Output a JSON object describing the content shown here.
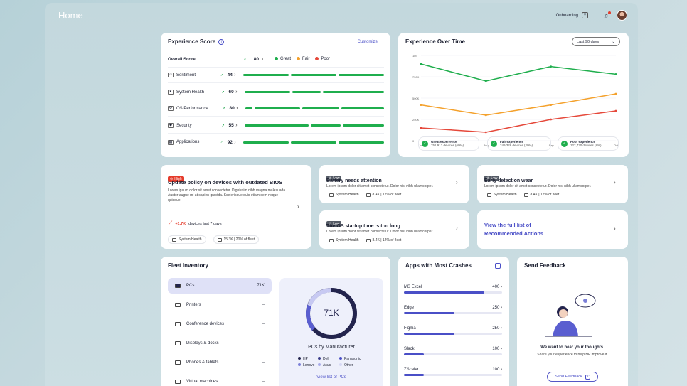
{
  "page": {
    "title": "Home"
  },
  "topbar": {
    "onboarding_label": "Onboarding"
  },
  "colors": {
    "accent": "#4a4fc7",
    "great": "#1fae4d",
    "fair": "#f4a12c",
    "poor": "#e5483a",
    "high": "#e53b2b",
    "low": "#555b66"
  },
  "experience_score": {
    "title": "Experience Score",
    "customize_label": "Customize",
    "overall": {
      "label": "Overall Score",
      "value": "80"
    },
    "legend": [
      "Great",
      "Fair",
      "Poor"
    ],
    "rows": [
      {
        "label": "Sentiment",
        "value": "44"
      },
      {
        "label": "System Health",
        "value": "60"
      },
      {
        "label": "OS Performance",
        "value": "80"
      },
      {
        "label": "Security",
        "value": "55"
      },
      {
        "label": "Applications",
        "value": "92"
      }
    ]
  },
  "experience_over_time": {
    "title": "Experience Over Time",
    "range_select": "Last 90 days",
    "summary": [
      {
        "label": "Great experience",
        "detail": "751,913 devices (60%)"
      },
      {
        "label": "Fair experience",
        "detail": "249,326 devices (20%)"
      },
      {
        "label": "Poor experience",
        "detail": "122,730 devices (8%)"
      }
    ]
  },
  "chart_data": {
    "type": "line",
    "x": [
      "Jul",
      "Aug",
      "Sep",
      "Oct"
    ],
    "yticks": [
      "1M",
      "750K",
      "500K",
      "250K",
      "0"
    ],
    "ylim": [
      0,
      1000000
    ],
    "series": [
      {
        "name": "Great experience",
        "values": [
          900000,
          700000,
          870000,
          780000
        ],
        "color": "#1fae4d"
      },
      {
        "name": "Fair experience",
        "values": [
          420000,
          300000,
          420000,
          550000
        ],
        "color": "#f4a12c"
      },
      {
        "name": "Poor experience",
        "values": [
          150000,
          100000,
          250000,
          350000
        ],
        "color": "#e5483a"
      }
    ],
    "grid": true
  },
  "recommendations": {
    "high": {
      "badge": "High",
      "title": "Update policy on devices with outdated BIOS",
      "desc": "Lorem ipsum dolor sit amet consectetur. Dignissim nibh magna malesuada. Auctor augue mi at sapien gravida. Scelerisque quis etiam sem neque quisque.",
      "stat_value": "+1.7K",
      "stat_label": "devices last 7 days",
      "category": "System Health",
      "fleet": "15.3K | 20% of fleet"
    },
    "items": [
      {
        "badge": "Low",
        "title": "Battery needs attention",
        "desc": "Lorem ipsum dolor sit amet consectetur. Dolor nisl nibh ullamcorper.",
        "category": "System Health",
        "fleet": "8.4K | 12% of fleet"
      },
      {
        "badge": "Low",
        "title": "Early detection wear",
        "desc": "Lorem ipsum dolor sit amet consectetur. Dolor nisl nibh ullamcorper.",
        "category": "System Health",
        "fleet": "8.4K | 12% of fleet"
      },
      {
        "badge": "Low",
        "title": "The OS startup time is too long",
        "desc": "Lorem ipsum dolor sit amet consectetur. Dolor nisl nibh ullamcorper.",
        "category": "System Health",
        "fleet": "8.4K | 12% of fleet"
      }
    ],
    "view_all_line1": "View the full list of",
    "view_all_line2": "Recommended Actions"
  },
  "fleet": {
    "title": "Fleet Inventory",
    "items": [
      {
        "label": "PCs",
        "count": "71K"
      },
      {
        "label": "Printers",
        "count": "--"
      },
      {
        "label": "Conference devices",
        "count": "--"
      },
      {
        "label": "Displays & docks",
        "count": "--"
      },
      {
        "label": "Phones & tablets",
        "count": "--"
      },
      {
        "label": "Virtual machines",
        "count": "--"
      }
    ],
    "donut_value": "71K",
    "donut_caption": "PCs by Manufacturer",
    "manufacturers": [
      "HP",
      "Dell",
      "Panasonic",
      "Lenovo",
      "Asus",
      "Other"
    ],
    "link": "View list of PCs"
  },
  "apps": {
    "title": "Apps with Most Crashes",
    "items": [
      {
        "name": "MS Excel",
        "value": 400
      },
      {
        "name": "Edge",
        "value": 250
      },
      {
        "name": "Figma",
        "value": 250
      },
      {
        "name": "Slack",
        "value": 100
      },
      {
        "name": "ZScaler",
        "value": 100
      }
    ]
  },
  "feedback": {
    "title": "Send Feedback",
    "heading": "We want to hear your thoughts.",
    "sub": "Share your experience to help HP improve it.",
    "button": "Send Feedback"
  }
}
